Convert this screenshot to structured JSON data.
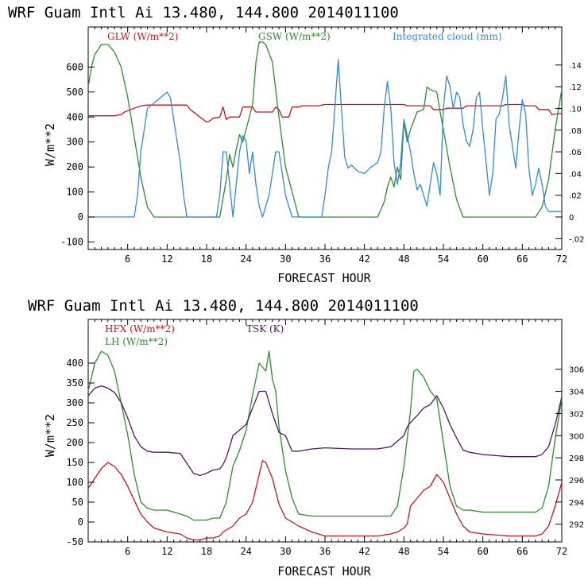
{
  "chart_data": [
    {
      "type": "line",
      "title": "WRF   Guam Intl Ai   13.480, 144.800   2014011100",
      "xlabel": "FORECAST HOUR",
      "ylabel": "W/m**2",
      "xlim": [
        0,
        72
      ],
      "ylim": [
        -130,
        760
      ],
      "xticks": [
        6,
        12,
        18,
        24,
        30,
        36,
        42,
        48,
        54,
        60,
        66,
        72
      ],
      "yticks": [
        -100,
        0,
        100,
        200,
        300,
        400,
        500,
        600
      ],
      "right_axis": {
        "ylim": [
          -0.03,
          0.175
        ],
        "ticks": [
          -0.02,
          0,
          0.02,
          0.04,
          0.06,
          0.08,
          0.1,
          0.12,
          0.14
        ],
        "tick_labels": [
          "-.02",
          "0",
          ".02",
          ".04",
          ".06",
          ".08",
          ".10",
          ".12",
          ".14"
        ]
      },
      "series": [
        {
          "name": "GLW (W/m**2)",
          "color": "#c0161e",
          "axis": "left",
          "x": [
            0,
            4,
            5,
            5.5,
            6.5,
            7,
            7.5,
            8,
            9,
            15,
            15.5,
            18,
            18.5,
            19,
            20,
            20.5,
            21,
            21.5,
            23,
            23.5,
            25,
            25.5,
            28,
            28.5,
            29,
            29.5,
            30.5,
            31,
            32,
            32.5,
            35,
            35.5,
            36,
            48,
            48.5,
            52,
            52.5,
            54,
            54.5,
            57,
            57.5,
            63,
            63.5,
            66,
            66.5,
            68,
            68.5,
            70,
            70.5,
            72
          ],
          "y": [
            405,
            405,
            410,
            420,
            430,
            435,
            440,
            445,
            448,
            448,
            430,
            380,
            385,
            395,
            400,
            440,
            390,
            400,
            400,
            440,
            440,
            420,
            420,
            440,
            430,
            400,
            400,
            440,
            440,
            445,
            445,
            448,
            450,
            450,
            445,
            445,
            430,
            430,
            435,
            435,
            445,
            445,
            450,
            450,
            445,
            445,
            430,
            430,
            410,
            415
          ]
        },
        {
          "name": "GSW (W/m**2)",
          "color": "#2e8b2e",
          "axis": "left",
          "x": [
            0,
            0.5,
            1,
            2,
            3,
            4,
            5,
            6,
            7,
            8,
            9,
            10,
            20,
            21,
            21.5,
            22,
            22.5,
            23,
            23.5,
            24,
            25,
            25.5,
            26,
            26.5,
            27,
            28,
            29,
            29.5,
            30,
            31,
            32,
            44,
            45,
            45.5,
            46,
            46.5,
            47,
            47.5,
            48,
            48.5,
            49,
            50,
            51,
            51.5,
            52,
            53,
            53.5,
            54,
            55,
            56,
            57,
            68,
            69,
            70,
            71,
            72
          ],
          "y": [
            520,
            600,
            650,
            690,
            690,
            660,
            600,
            480,
            320,
            160,
            40,
            0,
            0,
            150,
            250,
            200,
            270,
            330,
            300,
            350,
            450,
            620,
            700,
            700,
            690,
            620,
            400,
            300,
            200,
            100,
            0,
            0,
            60,
            120,
            160,
            120,
            200,
            150,
            380,
            300,
            350,
            420,
            430,
            520,
            510,
            500,
            420,
            350,
            200,
            70,
            0,
            0,
            40,
            150,
            350,
            510
          ]
        },
        {
          "name": "Integrated cloud (mm)",
          "color": "#3388dd",
          "axis": "right",
          "x": [
            0,
            7,
            7.5,
            8,
            8.5,
            9,
            10,
            11,
            12,
            12.5,
            13,
            14,
            14.5,
            15,
            19.5,
            20,
            20.5,
            21,
            21.5,
            22,
            22.5,
            23,
            23.5,
            24,
            24.5,
            25,
            25.5,
            26,
            26.5,
            27,
            27.5,
            28,
            28.5,
            29,
            29.5,
            30,
            30.5,
            31,
            35.5,
            36,
            36.5,
            37,
            37.5,
            38,
            38.5,
            39,
            39.5,
            40,
            41,
            42,
            43,
            44,
            44.5,
            45,
            45.5,
            46,
            46.5,
            47,
            47.5,
            48,
            48.5,
            49,
            49.5,
            50,
            50.5,
            51,
            51.5,
            52,
            52.5,
            53,
            53.5,
            54,
            54.5,
            55,
            55.5,
            56,
            56.5,
            57,
            57.5,
            58,
            58.5,
            59,
            59.5,
            60,
            60.5,
            61,
            61.5,
            62,
            62.5,
            63,
            63.5,
            64,
            64.5,
            65,
            65.5,
            66,
            66.5,
            67,
            67.5,
            68,
            68.5,
            69,
            69.5,
            70,
            72
          ],
          "y": [
            0,
            0,
            0.02,
            0.06,
            0.08,
            0.1,
            0.105,
            0.11,
            0.115,
            0.11,
            0.09,
            0.05,
            0.02,
            0,
            0,
            0.02,
            0.06,
            0.06,
            0.03,
            0,
            0.03,
            0.06,
            0.075,
            0.07,
            0.04,
            0.06,
            0.03,
            0.01,
            0,
            0.01,
            0.02,
            0.04,
            0.06,
            0.06,
            0.04,
            0.02,
            0.01,
            0,
            0,
            0.02,
            0.045,
            0.06,
            0.1,
            0.145,
            0.1,
            0.055,
            0.045,
            0.048,
            0.042,
            0.04,
            0.046,
            0.05,
            0.06,
            0.1,
            0.125,
            0.1,
            0.05,
            0.03,
            0.05,
            0.09,
            0.075,
            0.06,
            0.04,
            0.025,
            0.03,
            0.02,
            0.01,
            0.03,
            0.05,
            0.04,
            0.02,
            0.1,
            0.13,
            0.12,
            0.1,
            0.115,
            0.11,
            0.085,
            0.07,
            0.065,
            0.08,
            0.11,
            0.115,
            0.08,
            0.05,
            0.02,
            0.04,
            0.09,
            0.095,
            0.11,
            0.13,
            0.085,
            0.065,
            0.045,
            0.08,
            0.108,
            0.095,
            0.045,
            0.02,
            0.03,
            0.045,
            0.03,
            0.01,
            0.005,
            0.005
          ]
        }
      ]
    },
    {
      "type": "line",
      "title": "WRF   Guam Intl Ai   13.480, 144.800   2014011100",
      "xlabel": "FORECAST HOUR",
      "ylabel": "W/m**2",
      "xlim": [
        0,
        72
      ],
      "ylim": [
        -50,
        510
      ],
      "xticks": [
        6,
        12,
        18,
        24,
        30,
        36,
        42,
        48,
        54,
        60,
        66,
        72
      ],
      "yticks": [
        -50,
        0,
        50,
        100,
        150,
        200,
        250,
        300,
        350,
        400
      ],
      "right_axis": {
        "ylim": [
          290.4,
          310.5
        ],
        "ticks": [
          292,
          294,
          296,
          298,
          300,
          302,
          304,
          306
        ],
        "tick_labels": [
          "292",
          "294",
          "296",
          "298",
          "300",
          "302",
          "304",
          "306"
        ]
      },
      "series": [
        {
          "name": "HFX (W/m**2)",
          "color": "#c0161e",
          "axis": "left",
          "x": [
            0,
            1,
            2,
            3,
            4,
            5,
            6,
            7,
            8,
            9,
            10,
            12,
            14,
            15,
            16,
            17,
            18,
            19,
            20,
            20.5,
            21,
            22,
            23,
            24,
            25,
            26,
            26.5,
            27,
            28,
            29,
            30,
            32,
            34,
            36,
            40,
            44,
            46,
            47,
            48,
            48.5,
            49,
            50,
            51,
            52,
            53,
            54,
            55,
            56,
            57,
            58,
            60,
            64,
            68,
            69,
            70,
            71,
            72
          ],
          "y": [
            85,
            110,
            135,
            150,
            140,
            120,
            90,
            55,
            20,
            0,
            -15,
            -25,
            -30,
            -40,
            -45,
            -45,
            -40,
            -40,
            -35,
            -25,
            -20,
            -10,
            10,
            20,
            50,
            120,
            155,
            150,
            110,
            45,
            10,
            -10,
            -25,
            -35,
            -35,
            -35,
            -30,
            -25,
            -15,
            -5,
            40,
            60,
            80,
            90,
            120,
            100,
            60,
            20,
            -10,
            -25,
            -30,
            -35,
            -35,
            -30,
            -10,
            40,
            100
          ]
        },
        {
          "name": "LH (W/m**2)",
          "color": "#2e8b2e",
          "axis": "left",
          "x": [
            0,
            1,
            2,
            3,
            4,
            5,
            6,
            7,
            8,
            9,
            10,
            12,
            14,
            15,
            16,
            18,
            19,
            20,
            21,
            22,
            23,
            24,
            25,
            26,
            27,
            27.5,
            28,
            28.5,
            29,
            30,
            31,
            32,
            34,
            36,
            40,
            44,
            46,
            47,
            48,
            49,
            49.5,
            50,
            51,
            52,
            52.5,
            53,
            54,
            55,
            56,
            57,
            58,
            60,
            64,
            68,
            69,
            70,
            71,
            72
          ],
          "y": [
            330,
            400,
            430,
            420,
            380,
            300,
            220,
            120,
            50,
            35,
            30,
            30,
            20,
            15,
            5,
            5,
            10,
            10,
            50,
            140,
            180,
            230,
            320,
            400,
            380,
            430,
            360,
            330,
            240,
            130,
            60,
            20,
            15,
            15,
            15,
            15,
            15,
            40,
            140,
            280,
            380,
            385,
            365,
            330,
            320,
            310,
            200,
            90,
            40,
            30,
            30,
            25,
            25,
            25,
            35,
            90,
            210,
            310
          ]
        },
        {
          "name": "TSK (K)",
          "color": "#4b1a5a",
          "axis": "right",
          "x": [
            0,
            1,
            2,
            3,
            4,
            5,
            6,
            7,
            8,
            9,
            10,
            11,
            12,
            14,
            15,
            16,
            17,
            18,
            19,
            20,
            20.5,
            21,
            21.5,
            22,
            23,
            24,
            25,
            26,
            27,
            28,
            29,
            30,
            31,
            32,
            34,
            36,
            40,
            44,
            46,
            47,
            48,
            48.5,
            49,
            50,
            51,
            52,
            53,
            54,
            55,
            56,
            57,
            58,
            60,
            64,
            68,
            69,
            70,
            71,
            72
          ],
          "y": [
            303.6,
            304.3,
            304.5,
            304.3,
            303.9,
            303,
            301.6,
            300,
            299,
            298.6,
            298.5,
            298.5,
            298.5,
            298.4,
            297.5,
            296.6,
            296.4,
            296.6,
            296.9,
            297,
            297.4,
            298,
            299,
            300,
            300.5,
            301,
            302.5,
            304,
            304,
            302,
            300.3,
            300,
            298.6,
            298.6,
            298.8,
            298.9,
            298.8,
            298.8,
            299,
            299.5,
            300,
            300.8,
            301.2,
            301.8,
            302.5,
            302.8,
            303.6,
            302.5,
            301,
            299.8,
            298.7,
            298.5,
            298.3,
            298.1,
            298.1,
            298.3,
            299,
            301,
            303.5
          ]
        }
      ]
    }
  ],
  "panels": [
    {
      "legend": [
        {
          "text": "GLW (W/m**2)",
          "color": "#c0161e"
        },
        {
          "text": "GSW (W/m**2)",
          "color": "#2e8b2e"
        },
        {
          "text": "Integrated cloud (mm)",
          "color": "#3388dd"
        }
      ]
    },
    {
      "legend": [
        {
          "text": "HFX (W/m**2)",
          "color": "#c0161e"
        },
        {
          "text": "LH  (W/m**2)",
          "color": "#2e8b2e"
        },
        {
          "text": "TSK (K)",
          "color": "#4b1a5a"
        }
      ]
    }
  ]
}
